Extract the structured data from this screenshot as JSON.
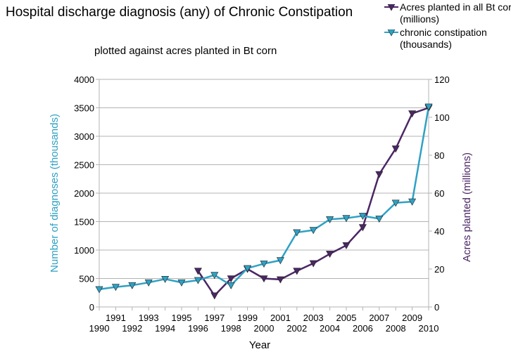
{
  "chart_data": {
    "type": "line",
    "title": "Hospital discharge diagnosis (any) of Chronic Constipation",
    "subtitle": "plotted against acres planted in Bt corn",
    "xlabel": "Year",
    "ylabel": "Number of diagnoses (thousands)",
    "y2label": "Acres planted (millions)",
    "x_ticks_upper": [
      "1991",
      "1993",
      "1995",
      "1997",
      "1999",
      "2001",
      "2003",
      "2005",
      "2007",
      "2009"
    ],
    "x_ticks_lower": [
      "1990",
      "1992",
      "1994",
      "1996",
      "1998",
      "2000",
      "2002",
      "2004",
      "2006",
      "2008",
      "2010"
    ],
    "x_range": [
      1990,
      2010
    ],
    "ylim": [
      0,
      4000
    ],
    "y_ticks": [
      "0",
      "500",
      "1000",
      "1500",
      "2000",
      "2500",
      "3000",
      "3500",
      "4000"
    ],
    "y2lim": [
      0,
      120
    ],
    "y2_ticks": [
      "0",
      "20",
      "40",
      "60",
      "80",
      "100",
      "120"
    ],
    "legend_position": "top-right",
    "colors": {
      "constipation": "#2fa1c4",
      "acres": "#4b2665",
      "grid": "#b3b3b3"
    },
    "series": [
      {
        "id": "acres",
        "name": "Acres planted in all Bt corn (millions)",
        "axis": "right",
        "marker": "triangle-down",
        "x": [
          1996,
          1997,
          1998,
          1999,
          2000,
          2001,
          2002,
          2003,
          2004,
          2005,
          2006,
          2007,
          2008,
          2009,
          2010
        ],
        "values": [
          19,
          6,
          15,
          20,
          15,
          14.5,
          19,
          23,
          28,
          32.5,
          42,
          70,
          83.5,
          102,
          105
        ]
      },
      {
        "id": "constipation",
        "name": "chronic constipation (thousands)",
        "axis": "left",
        "marker": "triangle-down",
        "x": [
          1990,
          1991,
          1992,
          1993,
          1994,
          1995,
          1996,
          1997,
          1998,
          1999,
          2000,
          2001,
          2002,
          2003,
          2004,
          2005,
          2006,
          2007,
          2008,
          2009,
          2010
        ],
        "values": [
          310,
          350,
          380,
          430,
          490,
          430,
          470,
          560,
          380,
          680,
          760,
          820,
          1310,
          1350,
          1540,
          1560,
          1600,
          1550,
          1830,
          1850,
          3520
        ]
      }
    ]
  }
}
